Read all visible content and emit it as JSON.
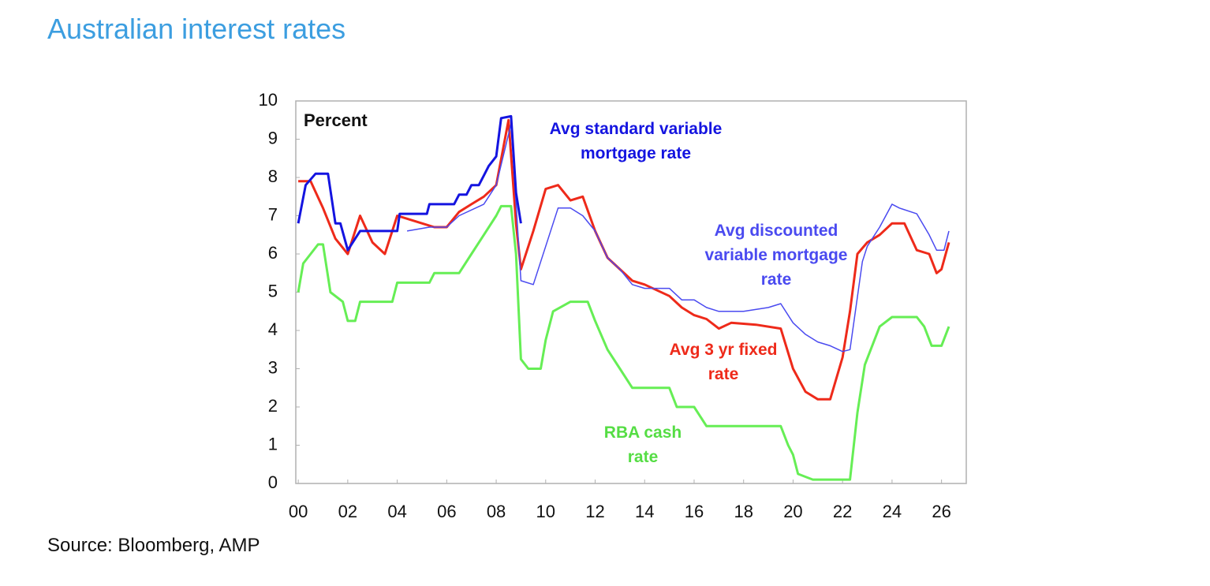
{
  "title": "Australian interest rates",
  "source": "Source: Bloomberg, AMP",
  "chart_data": {
    "type": "line",
    "y_label": "Percent",
    "xlim": [
      -0.1,
      27
    ],
    "ylim": [
      0,
      10
    ],
    "xticks": [
      {
        "value": 0,
        "label": "00"
      },
      {
        "value": 2,
        "label": "02"
      },
      {
        "value": 4,
        "label": "04"
      },
      {
        "value": 6,
        "label": "06"
      },
      {
        "value": 8,
        "label": "08"
      },
      10,
      12,
      14,
      16,
      18,
      20,
      22,
      24,
      26
    ],
    "yticks": [
      0,
      1,
      2,
      3,
      4,
      5,
      6,
      7,
      8,
      9,
      10
    ],
    "grid": false,
    "series": [
      {
        "name": "Avg standard variable mortgage rate",
        "color": "#1414e0",
        "width": 3,
        "x": [
          0,
          0.3,
          0.7,
          1.2,
          1.5,
          1.7,
          2,
          2.5,
          3,
          4,
          4.1,
          5.2,
          5.3,
          6.3,
          6.5,
          6.8,
          7,
          7.3,
          7.5,
          7.7,
          8,
          8.2,
          8.6,
          8.8,
          9
        ],
        "values": [
          6.8,
          7.8,
          8.1,
          8.1,
          6.8,
          6.8,
          6.1,
          6.6,
          6.6,
          6.6,
          7.05,
          7.05,
          7.3,
          7.3,
          7.55,
          7.55,
          7.8,
          7.8,
          8.05,
          8.3,
          8.55,
          9.55,
          9.6,
          7.6,
          6.8
        ]
      },
      {
        "name": "Avg discounted variable mortgage rate",
        "color": "#4a4af0",
        "width": 1.5,
        "x": [
          4.4,
          5.3,
          6,
          6.5,
          7.5,
          8,
          8.6,
          9,
          9.5,
          10,
          10.5,
          11,
          11.5,
          12,
          12.5,
          13,
          13.5,
          14,
          15,
          15.5,
          16,
          16.5,
          17,
          18,
          19,
          19.5,
          20,
          20.5,
          21,
          21.5,
          22,
          22.3,
          22.8,
          23,
          23.5,
          24,
          24.3,
          25,
          25.5,
          25.8,
          26.1,
          26.3
        ],
        "values": [
          6.6,
          6.7,
          6.7,
          7.0,
          7.3,
          7.8,
          9.4,
          5.3,
          5.2,
          6.2,
          7.2,
          7.2,
          7.0,
          6.6,
          5.9,
          5.6,
          5.2,
          5.1,
          5.1,
          4.8,
          4.8,
          4.6,
          4.5,
          4.5,
          4.6,
          4.7,
          4.2,
          3.9,
          3.7,
          3.6,
          3.45,
          3.5,
          5.8,
          6.2,
          6.7,
          7.3,
          7.2,
          7.05,
          6.5,
          6.1,
          6.1,
          6.6
        ]
      },
      {
        "name": "Avg 3 yr fixed rate",
        "color": "#ee2a1a",
        "width": 3,
        "x": [
          0,
          0.5,
          1,
          1.5,
          2,
          2.5,
          3,
          3.5,
          4,
          5,
          5.5,
          6,
          6.5,
          7,
          7.5,
          8,
          8.5,
          8.8,
          9,
          9.5,
          10,
          10.5,
          11,
          11.5,
          12,
          12.5,
          13,
          13.5,
          14,
          15,
          15.5,
          16,
          16.5,
          17,
          17.5,
          18.5,
          19.5,
          20,
          20.5,
          21,
          21.5,
          22,
          22.3,
          22.6,
          23,
          23.5,
          24,
          24.5,
          25,
          25.5,
          25.8,
          26,
          26.3
        ],
        "values": [
          7.9,
          7.9,
          7.2,
          6.4,
          6.0,
          7.0,
          6.3,
          6.0,
          7.0,
          6.8,
          6.7,
          6.7,
          7.1,
          7.3,
          7.5,
          7.8,
          9.5,
          6.8,
          5.6,
          6.6,
          7.7,
          7.8,
          7.4,
          7.5,
          6.6,
          5.9,
          5.6,
          5.3,
          5.2,
          4.9,
          4.6,
          4.4,
          4.3,
          4.05,
          4.2,
          4.15,
          4.05,
          3.0,
          2.4,
          2.2,
          2.2,
          3.3,
          4.5,
          6.0,
          6.3,
          6.5,
          6.8,
          6.8,
          6.1,
          6.0,
          5.5,
          5.6,
          6.3
        ]
      },
      {
        "name": "RBA cash rate",
        "color": "#66ee55",
        "width": 3,
        "x": [
          0,
          0.2,
          0.5,
          0.8,
          1,
          1.3,
          1.8,
          2,
          2.3,
          2.5,
          3.8,
          4,
          5.3,
          5.5,
          6.5,
          7,
          7.5,
          8,
          8.2,
          8.6,
          8.8,
          9,
          9.3,
          9.8,
          10,
          10.3,
          11,
          11.7,
          12,
          12.5,
          13,
          13.5,
          15,
          15.3,
          16,
          16.5,
          19.5,
          19.8,
          20,
          20.2,
          20.8,
          22.3,
          22.6,
          22.9,
          23.5,
          24,
          25,
          25.3,
          25.6,
          26,
          26.3
        ],
        "values": [
          5.0,
          5.75,
          6.0,
          6.25,
          6.25,
          5.0,
          4.75,
          4.25,
          4.25,
          4.75,
          4.75,
          5.25,
          5.25,
          5.5,
          5.5,
          6.0,
          6.5,
          7.0,
          7.25,
          7.25,
          6.0,
          3.25,
          3.0,
          3.0,
          3.75,
          4.5,
          4.75,
          4.75,
          4.25,
          3.5,
          3.0,
          2.5,
          2.5,
          2.0,
          2.0,
          1.5,
          1.5,
          1.0,
          0.75,
          0.25,
          0.1,
          0.1,
          1.85,
          3.1,
          4.1,
          4.35,
          4.35,
          4.1,
          3.6,
          3.6,
          4.1
        ]
      }
    ]
  }
}
